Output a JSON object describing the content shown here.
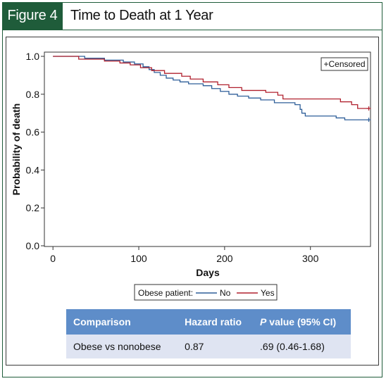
{
  "figure": {
    "label": "Figure 4",
    "title": "Time to Death at 1 Year"
  },
  "chart_data": {
    "type": "line",
    "xlabel": "Days",
    "ylabel": "Probability of death",
    "xlim": [
      -10,
      370
    ],
    "ylim": [
      0,
      1.05
    ],
    "xticks": [
      0,
      100,
      200,
      300
    ],
    "yticks": [
      0.0,
      0.2,
      0.4,
      0.6,
      0.8,
      1.0
    ],
    "ytick_labels": [
      "0.0",
      "0.2",
      "0.4",
      "0.6",
      "0.8",
      "1.0"
    ],
    "censored_note": "+Censored",
    "legend": {
      "title": "Obese patient:",
      "placement": "bottom"
    },
    "series": [
      {
        "name": "No",
        "color": "#2f5f99",
        "steps": [
          [
            0,
            1.0
          ],
          [
            37,
            1.0
          ],
          [
            37,
            0.99
          ],
          [
            60,
            0.98
          ],
          [
            82,
            0.97
          ],
          [
            95,
            0.96
          ],
          [
            105,
            0.945
          ],
          [
            112,
            0.93
          ],
          [
            118,
            0.915
          ],
          [
            125,
            0.9
          ],
          [
            132,
            0.885
          ],
          [
            140,
            0.875
          ],
          [
            148,
            0.865
          ],
          [
            158,
            0.855
          ],
          [
            175,
            0.845
          ],
          [
            185,
            0.83
          ],
          [
            195,
            0.815
          ],
          [
            205,
            0.8
          ],
          [
            215,
            0.79
          ],
          [
            228,
            0.78
          ],
          [
            242,
            0.77
          ],
          [
            258,
            0.755
          ],
          [
            282,
            0.745
          ],
          [
            288,
            0.72
          ],
          [
            290,
            0.7
          ],
          [
            294,
            0.685
          ],
          [
            330,
            0.675
          ],
          [
            340,
            0.665
          ],
          [
            368,
            0.665
          ]
        ],
        "censored_at": [
          [
            368,
            0.665
          ]
        ]
      },
      {
        "name": "Yes",
        "color": "#b0202e",
        "steps": [
          [
            0,
            1.0
          ],
          [
            30,
            1.0
          ],
          [
            30,
            0.985
          ],
          [
            60,
            0.975
          ],
          [
            78,
            0.965
          ],
          [
            90,
            0.955
          ],
          [
            102,
            0.94
          ],
          [
            115,
            0.925
          ],
          [
            130,
            0.91
          ],
          [
            150,
            0.895
          ],
          [
            160,
            0.88
          ],
          [
            175,
            0.865
          ],
          [
            192,
            0.85
          ],
          [
            205,
            0.835
          ],
          [
            220,
            0.82
          ],
          [
            248,
            0.81
          ],
          [
            262,
            0.795
          ],
          [
            268,
            0.775
          ],
          [
            335,
            0.76
          ],
          [
            348,
            0.745
          ],
          [
            355,
            0.725
          ],
          [
            368,
            0.725
          ]
        ],
        "censored_at": [
          [
            368,
            0.725
          ]
        ]
      }
    ]
  },
  "table": {
    "headers": [
      "Comparison",
      "Hazard ratio",
      "value (95% CI)"
    ],
    "p_label": "P",
    "rows": [
      [
        "Obese vs nonobese",
        "0.87",
        ".69 (0.46-1.68)"
      ]
    ]
  }
}
